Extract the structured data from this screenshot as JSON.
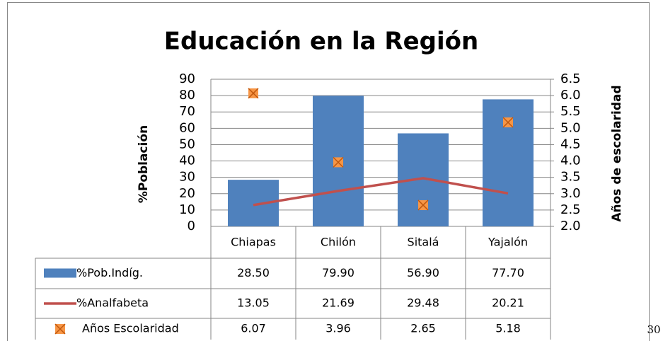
{
  "chart_data": {
    "type": "bar",
    "title": "Educación en la Región",
    "y_label": "%Población",
    "y2_label": "Años de escolaridad",
    "categories": [
      "Chiapas",
      "Chilón",
      "Sitalá",
      "Yajalón"
    ],
    "series": [
      {
        "name": "%Pob.Indíg.",
        "type": "bar",
        "color": "#4f81bd",
        "values": [
          28.5,
          79.9,
          56.9,
          77.7
        ],
        "value_labels": [
          "28.50",
          "79.90",
          "56.90",
          "77.70"
        ]
      },
      {
        "name": "%Analfabeta",
        "type": "line",
        "color": "#c0504d",
        "values": [
          13.05,
          21.69,
          29.48,
          20.21
        ]
      },
      {
        "name": "Años Escolaridad",
        "type": "scatter",
        "axis": "y2",
        "color": "#f79646",
        "values": [
          6.07,
          3.96,
          2.65,
          5.18
        ]
      }
    ],
    "ylim": [
      0,
      90
    ],
    "yticks": [
      0,
      10,
      20,
      30,
      40,
      50,
      60,
      70,
      80,
      90
    ],
    "y2lim": [
      2.0,
      6.5
    ],
    "y2ticks": [
      {
        "value": 2,
        "label": "2.0"
      },
      {
        "value": 2.5,
        "label": "2.5"
      },
      {
        "value": 3,
        "label": "3.0"
      },
      {
        "value": 3.5,
        "label": "3.5"
      },
      {
        "value": 4,
        "label": "4.0"
      },
      {
        "value": 4.5,
        "label": "4.5"
      },
      {
        "value": 5,
        "label": "5.0"
      },
      {
        "value": 5.5,
        "label": "5.5"
      },
      {
        "value": 6,
        "label": "6.0"
      },
      {
        "value": 6.5,
        "label": "6.5"
      }
    ],
    "grid": true
  },
  "page_number": "30"
}
